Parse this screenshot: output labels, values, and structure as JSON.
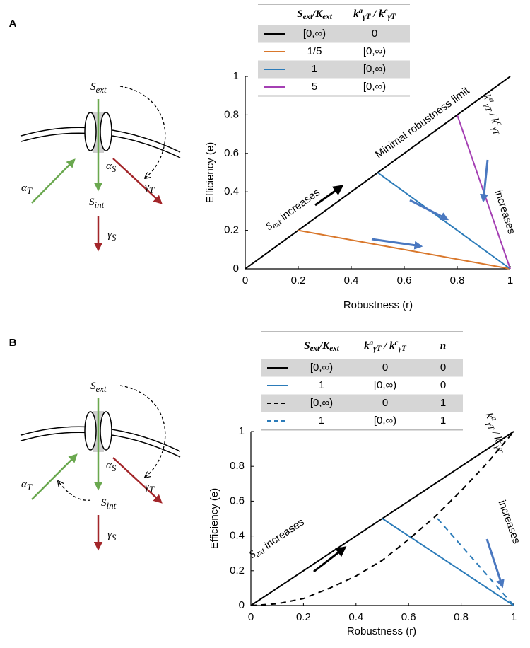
{
  "panels": [
    "A",
    "B"
  ],
  "diagrams": [
    {
      "labels": {
        "S_ext": [
          {
            "text": "S",
            "style": "it"
          },
          {
            "text": "ext",
            "style": "sub"
          }
        ],
        "S_int": [
          {
            "text": "S",
            "style": "it"
          },
          {
            "text": "int",
            "style": "sub"
          }
        ],
        "alpha_T": [
          {
            "text": "α",
            "style": "it"
          },
          {
            "text": "T",
            "style": "sub"
          }
        ],
        "alpha_S": [
          {
            "text": "α",
            "style": "it"
          },
          {
            "text": "S",
            "style": "sub"
          }
        ],
        "gamma_T": [
          {
            "text": "γ",
            "style": "it"
          },
          {
            "text": "T",
            "style": "sub"
          }
        ],
        "gamma_S": [
          {
            "text": "γ",
            "style": "it"
          },
          {
            "text": "S",
            "style": "sub"
          }
        ]
      }
    },
    {
      "labels": {
        "S_ext": [
          {
            "text": "S",
            "style": "it"
          },
          {
            "text": "ext",
            "style": "sub"
          }
        ],
        "S_int": [
          {
            "text": "S",
            "style": "it"
          },
          {
            "text": "int",
            "style": "sub"
          }
        ],
        "alpha_T": [
          {
            "text": "α",
            "style": "it"
          },
          {
            "text": "T",
            "style": "sub"
          }
        ],
        "alpha_S": [
          {
            "text": "α",
            "style": "it"
          },
          {
            "text": "S",
            "style": "sub"
          }
        ],
        "gamma_T": [
          {
            "text": "γ",
            "style": "it"
          },
          {
            "text": "T",
            "style": "sub"
          }
        ],
        "gamma_S": [
          {
            "text": "γ",
            "style": "it"
          },
          {
            "text": "S",
            "style": "sub"
          }
        ]
      }
    }
  ],
  "chart_data": [
    {
      "type": "line",
      "x_label": "Robustness (r)",
      "y_label": "Efficiency (e)",
      "xlim": [
        0,
        1
      ],
      "ylim": [
        0,
        1
      ],
      "xticks": [
        0,
        0.2,
        0.4,
        0.6,
        0.8,
        1
      ],
      "yticks": [
        0,
        0.2,
        0.4,
        0.6,
        0.8,
        1
      ],
      "series": [
        {
          "color": "#000000",
          "dash": false,
          "x": [
            0,
            1
          ],
          "values": [
            0,
            1
          ]
        },
        {
          "color": "#d9772b",
          "dash": false,
          "x": [
            0.2,
            1
          ],
          "values": [
            0.2,
            0
          ]
        },
        {
          "color": "#2b7bb9",
          "dash": false,
          "x": [
            0.5,
            1
          ],
          "values": [
            0.5,
            0
          ]
        },
        {
          "color": "#a43fb3",
          "dash": false,
          "x": [
            0.8,
            1
          ],
          "values": [
            0.8,
            0
          ]
        }
      ],
      "legend_table": {
        "columns": [
          [
            {
              "text": "S",
              "style": "it"
            },
            {
              "text": "ext",
              "style": "sub"
            },
            {
              "text": "/K",
              "style": "it"
            },
            {
              "text": "ext",
              "style": "sub"
            }
          ],
          [
            {
              "text": "k",
              "style": "it"
            },
            {
              "text": "a",
              "style": "sup"
            },
            {
              "text": "γT",
              "style": "sub"
            },
            {
              "text": " / k",
              "style": "it"
            },
            {
              "text": "c",
              "style": "sup"
            },
            {
              "text": "γT",
              "style": "sub"
            }
          ]
        ],
        "rows": [
          [
            "[0,∞)",
            "0"
          ],
          [
            "1/5",
            "[0,∞)"
          ],
          [
            "1",
            "[0,∞)"
          ],
          [
            "5",
            "[0,∞)"
          ]
        ]
      },
      "annotations": [
        [
          {
            "text": "Minimal robustness limit"
          }
        ],
        [
          {
            "text": "S",
            "style": "it"
          },
          {
            "text": "ext",
            "style": "sub"
          },
          {
            "text": " increases"
          }
        ],
        [
          {
            "text": "k",
            "style": "it"
          },
          {
            "text": "a",
            "style": "sup"
          },
          {
            "text": "γT",
            "style": "sub"
          },
          {
            "text": " / k",
            "style": "it"
          },
          {
            "text": "c",
            "style": "sup"
          },
          {
            "text": "γT",
            "style": "sub"
          }
        ],
        [
          {
            "text": "increases"
          }
        ]
      ]
    },
    {
      "type": "line",
      "x_label": "Robustness (r)",
      "y_label": "Efficiency (e)",
      "xlim": [
        0,
        1
      ],
      "ylim": [
        0,
        1
      ],
      "xticks": [
        0,
        0.2,
        0.4,
        0.6,
        0.8,
        1
      ],
      "yticks": [
        0,
        0.2,
        0.4,
        0.6,
        0.8,
        1
      ],
      "series": [
        {
          "color": "#000000",
          "dash": false,
          "x": [
            0,
            1
          ],
          "values": [
            0,
            1
          ]
        },
        {
          "color": "#2b7bb9",
          "dash": false,
          "x": [
            0.5,
            1
          ],
          "values": [
            0.5,
            0
          ]
        },
        {
          "color": "#000000",
          "dash": true,
          "x": [
            0,
            0.1,
            0.2,
            0.3,
            0.4,
            0.5,
            0.6,
            0.7,
            0.8,
            0.9,
            1
          ],
          "values": [
            0,
            0.01,
            0.04,
            0.1,
            0.17,
            0.26,
            0.38,
            0.51,
            0.66,
            0.82,
            1
          ]
        },
        {
          "color": "#2b7bb9",
          "dash": true,
          "x": [
            0.71,
            1
          ],
          "values": [
            0.5,
            0
          ]
        }
      ],
      "legend_table": {
        "columns": [
          [
            {
              "text": "S",
              "style": "it"
            },
            {
              "text": "ext",
              "style": "sub"
            },
            {
              "text": "/K",
              "style": "it"
            },
            {
              "text": "ext",
              "style": "sub"
            }
          ],
          [
            {
              "text": "k",
              "style": "it"
            },
            {
              "text": "a",
              "style": "sup"
            },
            {
              "text": "γT",
              "style": "sub"
            },
            {
              "text": " / k",
              "style": "it"
            },
            {
              "text": "c",
              "style": "sup"
            },
            {
              "text": "γT",
              "style": "sub"
            }
          ],
          [
            {
              "text": "n",
              "style": "it"
            }
          ]
        ],
        "rows": [
          [
            "[0,∞)",
            "0",
            "0"
          ],
          [
            "1",
            "[0,∞)",
            "0"
          ],
          [
            "[0,∞)",
            "0",
            "1"
          ],
          [
            "1",
            "[0,∞)",
            "1"
          ]
        ]
      },
      "annotations": [
        [
          {
            "text": "S",
            "style": "it"
          },
          {
            "text": "ext",
            "style": "sub"
          },
          {
            "text": " increases"
          }
        ],
        [
          {
            "text": "k",
            "style": "it"
          },
          {
            "text": "a",
            "style": "sup"
          },
          {
            "text": "γT",
            "style": "sub"
          },
          {
            "text": " / k",
            "style": "it"
          },
          {
            "text": "c",
            "style": "sup"
          },
          {
            "text": "γT",
            "style": "sub"
          }
        ],
        [
          {
            "text": "increases"
          }
        ]
      ]
    }
  ]
}
